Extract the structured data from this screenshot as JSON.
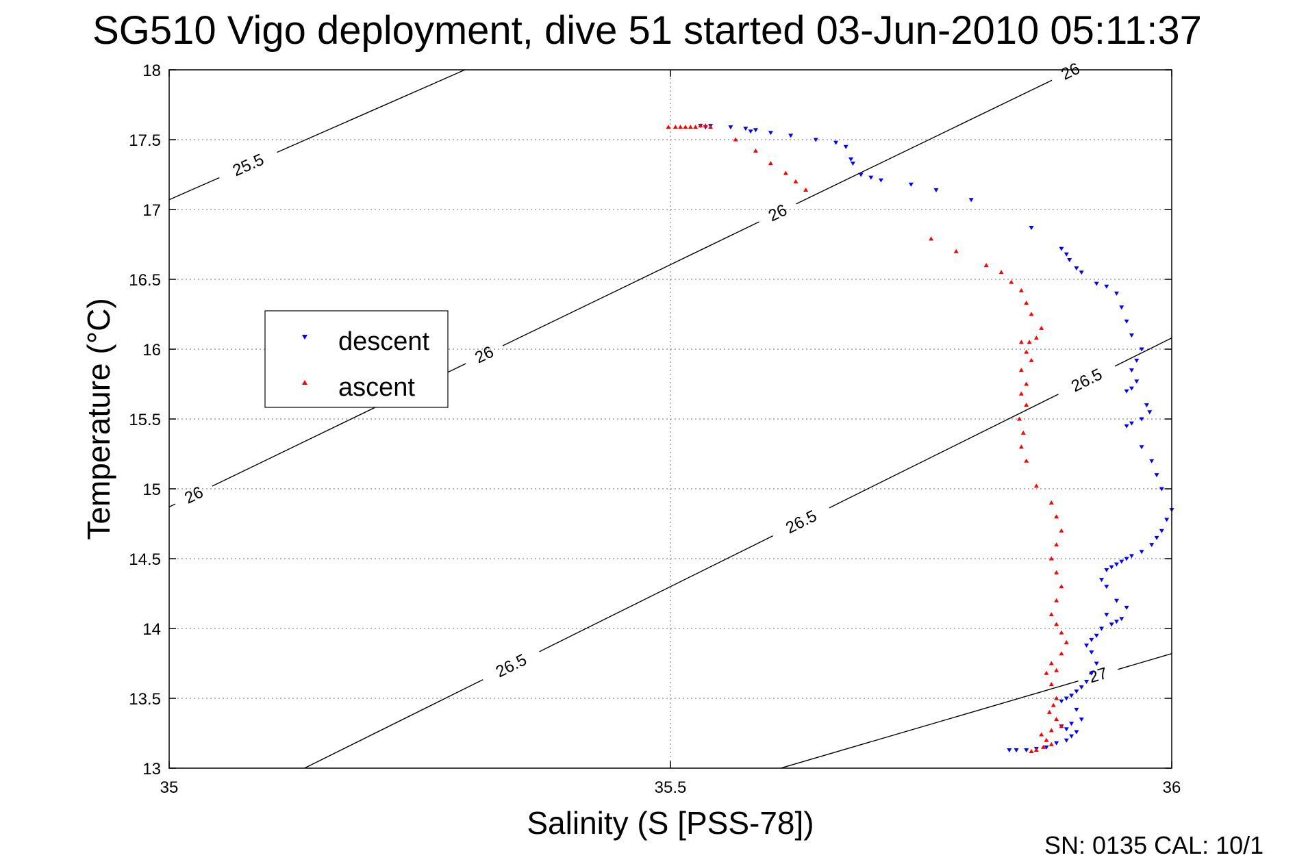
{
  "chart_data": {
    "type": "scatter",
    "title": "SG510 Vigo deployment, dive 51 started 03-Jun-2010 05:11:37",
    "xlabel": "Salinity (S [PSS-78])",
    "ylabel": "Temperature (°C)",
    "xlim": [
      35,
      36
    ],
    "ylim": [
      13,
      18
    ],
    "x_ticks": [
      "35",
      "35.5",
      "36"
    ],
    "y_ticks": [
      "13",
      "13.5",
      "14",
      "14.5",
      "15",
      "15.5",
      "16",
      "16.5",
      "17",
      "17.5",
      "18"
    ],
    "grid": true,
    "legend_position": "left-middle",
    "footer": "SN: 0135  CAL: 10/1",
    "isopycnals": [
      {
        "label": "25.5",
        "points": [
          [
            35.0,
            17.07
          ],
          [
            35.295,
            18.0
          ]
        ],
        "label_positions": [
          [
            35.08,
            17.3
          ]
        ]
      },
      {
        "label": "26",
        "points": [
          [
            35.0,
            14.87
          ],
          [
            35.902,
            18.0
          ]
        ],
        "label_positions": [
          [
            35.025,
            14.95
          ],
          [
            35.315,
            15.95
          ],
          [
            35.61,
            16.93
          ],
          [
            35.905,
            17.9
          ]
        ]
      },
      {
        "label": "26.5",
        "points": [
          [
            35.135,
            13.0
          ],
          [
            36.0,
            16.08
          ]
        ],
        "label_positions": [
          [
            35.34,
            13.75
          ],
          [
            35.63,
            14.77
          ],
          [
            35.915,
            15.78
          ]
        ]
      },
      {
        "label": "27",
        "points": [
          [
            35.61,
            13.0
          ],
          [
            36.0,
            13.82
          ]
        ],
        "label_positions": [
          [
            35.93,
            13.58
          ]
        ]
      }
    ],
    "series": [
      {
        "name": "descent",
        "color": "#0000ff",
        "marker": "triangle-down",
        "points": [
          [
            35.53,
            17.6
          ],
          [
            35.535,
            17.59
          ],
          [
            35.54,
            17.6
          ],
          [
            35.56,
            17.59
          ],
          [
            35.575,
            17.58
          ],
          [
            35.58,
            17.56
          ],
          [
            35.585,
            17.57
          ],
          [
            35.6,
            17.55
          ],
          [
            35.62,
            17.53
          ],
          [
            35.645,
            17.5
          ],
          [
            35.665,
            17.48
          ],
          [
            35.675,
            17.45
          ],
          [
            35.68,
            17.36
          ],
          [
            35.682,
            17.33
          ],
          [
            35.69,
            17.25
          ],
          [
            35.7,
            17.23
          ],
          [
            35.71,
            17.21
          ],
          [
            35.74,
            17.18
          ],
          [
            35.765,
            17.14
          ],
          [
            35.8,
            17.07
          ],
          [
            35.86,
            16.87
          ],
          [
            35.89,
            16.72
          ],
          [
            35.895,
            16.68
          ],
          [
            35.898,
            16.64
          ],
          [
            35.905,
            16.58
          ],
          [
            35.91,
            16.55
          ],
          [
            35.925,
            16.47
          ],
          [
            35.935,
            16.45
          ],
          [
            35.945,
            16.4
          ],
          [
            35.95,
            16.3
          ],
          [
            35.955,
            16.2
          ],
          [
            35.96,
            16.1
          ],
          [
            35.97,
            16.0
          ],
          [
            35.965,
            15.92
          ],
          [
            35.96,
            15.85
          ],
          [
            35.965,
            15.77
          ],
          [
            35.96,
            15.72
          ],
          [
            35.955,
            15.7
          ],
          [
            35.975,
            15.6
          ],
          [
            35.978,
            15.55
          ],
          [
            35.97,
            15.5
          ],
          [
            35.96,
            15.47
          ],
          [
            35.955,
            15.45
          ],
          [
            35.97,
            15.3
          ],
          [
            35.98,
            15.2
          ],
          [
            35.985,
            15.1
          ],
          [
            35.99,
            15.0
          ],
          [
            36.0,
            14.85
          ],
          [
            35.995,
            14.78
          ],
          [
            35.99,
            14.7
          ],
          [
            35.985,
            14.65
          ],
          [
            35.98,
            14.6
          ],
          [
            35.97,
            14.55
          ],
          [
            35.96,
            14.52
          ],
          [
            35.955,
            14.5
          ],
          [
            35.95,
            14.48
          ],
          [
            35.945,
            14.46
          ],
          [
            35.94,
            14.44
          ],
          [
            35.935,
            14.42
          ],
          [
            35.93,
            14.35
          ],
          [
            35.935,
            14.3
          ],
          [
            35.945,
            14.2
          ],
          [
            35.935,
            14.1
          ],
          [
            35.955,
            14.15
          ],
          [
            35.95,
            14.07
          ],
          [
            35.945,
            14.05
          ],
          [
            35.94,
            14.03
          ],
          [
            35.93,
            14.0
          ],
          [
            35.925,
            13.95
          ],
          [
            35.92,
            13.92
          ],
          [
            35.915,
            13.88
          ],
          [
            35.92,
            13.83
          ],
          [
            35.925,
            13.75
          ],
          [
            35.92,
            13.68
          ],
          [
            35.915,
            13.62
          ],
          [
            35.91,
            13.58
          ],
          [
            35.905,
            13.55
          ],
          [
            35.9,
            13.52
          ],
          [
            35.895,
            13.5
          ],
          [
            35.89,
            13.48
          ],
          [
            35.905,
            13.42
          ],
          [
            35.91,
            13.35
          ],
          [
            35.9,
            13.32
          ],
          [
            35.89,
            13.3
          ],
          [
            35.895,
            13.28
          ],
          [
            35.905,
            13.26
          ],
          [
            35.9,
            13.23
          ],
          [
            35.895,
            13.2
          ],
          [
            35.885,
            13.18
          ],
          [
            35.875,
            13.15
          ],
          [
            35.865,
            13.14
          ],
          [
            35.855,
            13.13
          ],
          [
            35.845,
            13.13
          ],
          [
            35.838,
            13.13
          ]
        ]
      },
      {
        "name": "ascent",
        "color": "#ff0000",
        "marker": "triangle-up",
        "points": [
          [
            35.498,
            17.59
          ],
          [
            35.505,
            17.59
          ],
          [
            35.51,
            17.59
          ],
          [
            35.515,
            17.59
          ],
          [
            35.52,
            17.59
          ],
          [
            35.525,
            17.59
          ],
          [
            35.53,
            17.6
          ],
          [
            35.535,
            17.6
          ],
          [
            35.54,
            17.59
          ],
          [
            35.565,
            17.5
          ],
          [
            35.585,
            17.42
          ],
          [
            35.6,
            17.33
          ],
          [
            35.615,
            17.26
          ],
          [
            35.625,
            17.2
          ],
          [
            35.635,
            17.14
          ],
          [
            35.76,
            16.79
          ],
          [
            35.785,
            16.7
          ],
          [
            35.815,
            16.6
          ],
          [
            35.83,
            16.55
          ],
          [
            35.84,
            16.48
          ],
          [
            35.85,
            16.42
          ],
          [
            35.855,
            16.33
          ],
          [
            35.86,
            16.25
          ],
          [
            35.87,
            16.15
          ],
          [
            35.865,
            16.08
          ],
          [
            35.858,
            16.05
          ],
          [
            35.85,
            16.05
          ],
          [
            35.855,
            15.98
          ],
          [
            35.86,
            15.92
          ],
          [
            35.85,
            15.85
          ],
          [
            35.855,
            15.75
          ],
          [
            35.85,
            15.68
          ],
          [
            35.855,
            15.6
          ],
          [
            35.848,
            15.5
          ],
          [
            35.852,
            15.4
          ],
          [
            35.85,
            15.3
          ],
          [
            35.855,
            15.2
          ],
          [
            35.865,
            15.02
          ],
          [
            35.88,
            14.9
          ],
          [
            35.885,
            14.8
          ],
          [
            35.89,
            14.7
          ],
          [
            35.885,
            14.6
          ],
          [
            35.88,
            14.5
          ],
          [
            35.885,
            14.4
          ],
          [
            35.89,
            14.3
          ],
          [
            35.885,
            14.2
          ],
          [
            35.88,
            14.1
          ],
          [
            35.885,
            14.03
          ],
          [
            35.89,
            13.97
          ],
          [
            35.895,
            13.9
          ],
          [
            35.89,
            13.82
          ],
          [
            35.88,
            13.75
          ],
          [
            35.885,
            13.7
          ],
          [
            35.875,
            13.68
          ],
          [
            35.88,
            13.6
          ],
          [
            35.885,
            13.5
          ],
          [
            35.882,
            13.45
          ],
          [
            35.878,
            13.4
          ],
          [
            35.885,
            13.35
          ],
          [
            35.89,
            13.3
          ],
          [
            35.88,
            13.27
          ],
          [
            35.87,
            13.24
          ],
          [
            35.875,
            13.2
          ],
          [
            35.88,
            13.17
          ],
          [
            35.872,
            13.15
          ],
          [
            35.865,
            13.13
          ],
          [
            35.86,
            13.12
          ]
        ]
      }
    ]
  }
}
